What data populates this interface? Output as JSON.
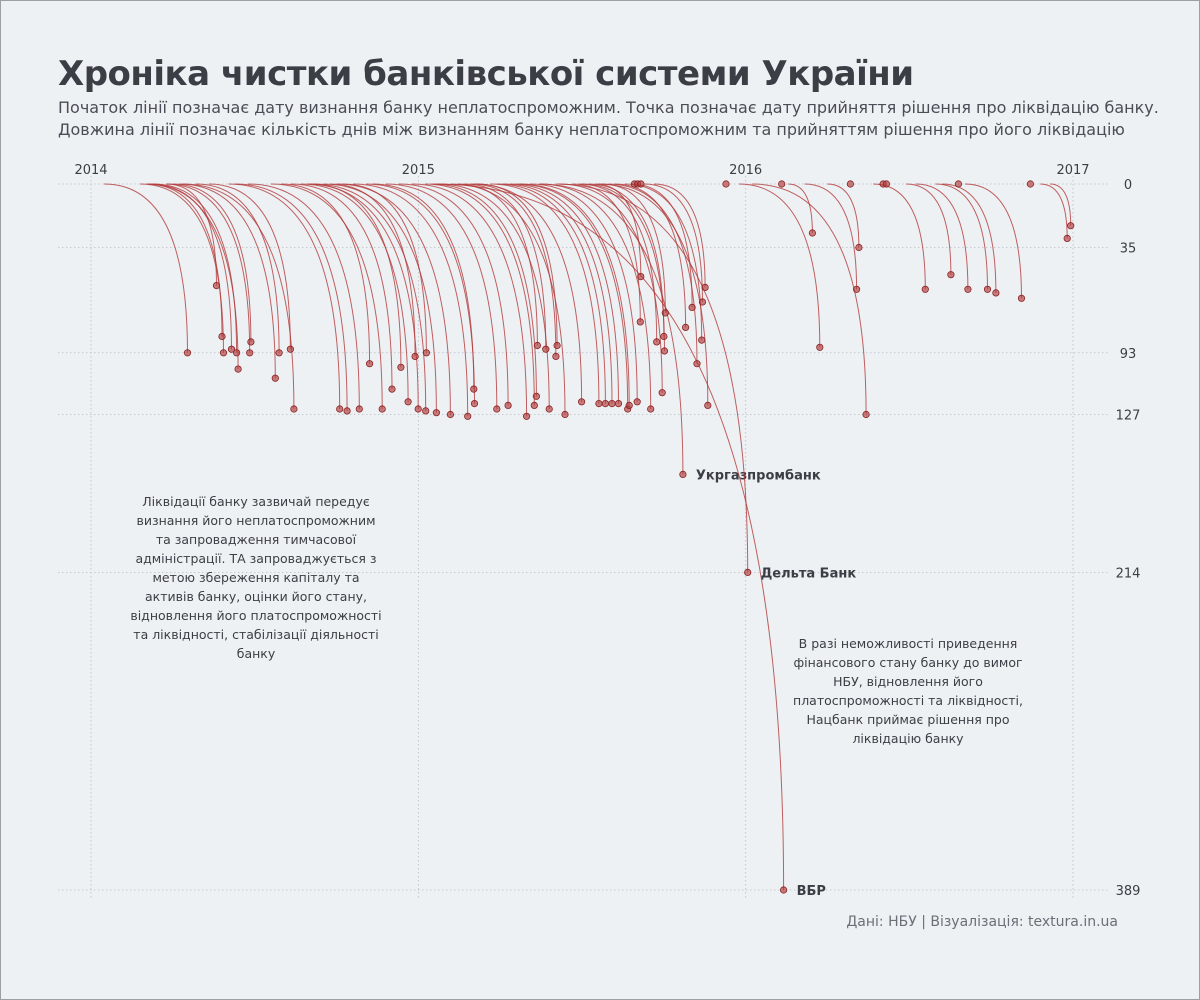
{
  "title": "Хроніка чистки банківської системи України",
  "subtitle": [
    "Початок лінії позначає дату визнання банку неплатоспроможним. Точка позначає дату прийняття рішення про ліквідацію банку.",
    "Довжина лінії позначає кількість днів між визнанням банку неплатоспроможним та прийняттям рішення про його ліквідацію"
  ],
  "notes": {
    "left": "Ліквідації банку зазвичай передує визнання його неплатоспроможним та запровадження тимчасової адміністрації. ТА запроваджується з метою збереження капіталу та активів банку, оцінки його стану, відновлення його платоспроможності та ліквідності, стабілізації діяльності банку",
    "right": "В разі неможливості приведення фінансового стану банку до вимог НБУ, відновлення його платоспроможності та ліквідності, Нацбанк приймає рішення про ліквідацію банку"
  },
  "source": "Дані: НБУ | Візуалізація: textura.in.ua",
  "colors": {
    "line": "#b23a3a",
    "point": "#b23a3a",
    "grid": "#b9bdc3",
    "text": "#3b3e45",
    "background": "#eef1f4"
  },
  "chart_data": {
    "type": "line",
    "x_axis": {
      "label": "",
      "unit": "year",
      "ticks": [
        "2014",
        "2015",
        "2016",
        "2017"
      ],
      "range": [
        2014.0,
        2017.0
      ],
      "position": "top"
    },
    "y_axis": {
      "label": "",
      "unit": "days",
      "ticks": [
        "0",
        "35",
        "93",
        "127",
        "214",
        "389"
      ],
      "range": [
        0,
        389
      ],
      "position": "right",
      "direction": "down"
    },
    "grid": true,
    "series": [
      {
        "comment": "",
        "points": [
          {
            "start": 2014.04,
            "days": 93,
            "label": ""
          },
          {
            "start": 2014.15,
            "days": 93,
            "label": ""
          },
          {
            "start": 2014.17,
            "days": 84,
            "label": ""
          },
          {
            "start": 2014.17,
            "days": 102,
            "label": ""
          },
          {
            "start": 2014.18,
            "days": 91,
            "label": ""
          },
          {
            "start": 2014.19,
            "days": 93,
            "label": ""
          },
          {
            "start": 2014.23,
            "days": 56,
            "label": ""
          },
          {
            "start": 2014.23,
            "days": 93,
            "label": ""
          },
          {
            "start": 2014.25,
            "days": 87,
            "label": ""
          },
          {
            "start": 2014.27,
            "days": 107,
            "label": ""
          },
          {
            "start": 2014.28,
            "days": 124,
            "label": ""
          },
          {
            "start": 2014.32,
            "days": 93,
            "label": ""
          },
          {
            "start": 2014.36,
            "days": 91,
            "label": ""
          },
          {
            "start": 2014.42,
            "days": 124,
            "label": ""
          },
          {
            "start": 2014.44,
            "days": 125,
            "label": ""
          },
          {
            "start": 2014.48,
            "days": 124,
            "label": ""
          },
          {
            "start": 2014.55,
            "days": 124,
            "label": ""
          },
          {
            "start": 2014.58,
            "days": 99,
            "label": ""
          },
          {
            "start": 2014.61,
            "days": 113,
            "label": ""
          },
          {
            "start": 2014.64,
            "days": 120,
            "label": ""
          },
          {
            "start": 2014.66,
            "days": 124,
            "label": ""
          },
          {
            "start": 2014.67,
            "days": 101,
            "label": ""
          },
          {
            "start": 2014.68,
            "days": 125,
            "label": ""
          },
          {
            "start": 2014.71,
            "days": 126,
            "label": ""
          },
          {
            "start": 2014.73,
            "days": 95,
            "label": ""
          },
          {
            "start": 2014.75,
            "days": 127,
            "label": ""
          },
          {
            "start": 2014.77,
            "days": 93,
            "label": ""
          },
          {
            "start": 2014.8,
            "days": 128,
            "label": ""
          },
          {
            "start": 2014.84,
            "days": 121,
            "label": ""
          },
          {
            "start": 2014.86,
            "days": 113,
            "label": ""
          },
          {
            "start": 2014.9,
            "days": 124,
            "label": ""
          },
          {
            "start": 2014.94,
            "days": 122,
            "label": ""
          },
          {
            "start": 2014.98,
            "days": 128,
            "label": ""
          },
          {
            "start": 2015.02,
            "days": 122,
            "label": ""
          },
          {
            "start": 2015.04,
            "days": 117,
            "label": ""
          },
          {
            "start": 2015.06,
            "days": 124,
            "label": ""
          },
          {
            "start": 2015.1,
            "days": 127,
            "label": ""
          },
          {
            "start": 2015.12,
            "days": 89,
            "label": ""
          },
          {
            "start": 2015.14,
            "days": 91,
            "label": ""
          },
          {
            "start": 2015.16,
            "days": 95,
            "label": ""
          },
          {
            "start": 2015.17,
            "days": 120,
            "label": ""
          },
          {
            "start": 2015.18,
            "days": 89,
            "label": ""
          },
          {
            "start": 2015.22,
            "days": 121,
            "label": ""
          },
          {
            "start": 2015.24,
            "days": 121,
            "label": ""
          },
          {
            "start": 2015.26,
            "days": 121,
            "label": ""
          },
          {
            "start": 2015.28,
            "days": 121,
            "label": ""
          },
          {
            "start": 2015.3,
            "days": 124,
            "label": ""
          },
          {
            "start": 2015.31,
            "days": 122,
            "label": ""
          },
          {
            "start": 2015.34,
            "days": 120,
            "label": ""
          },
          {
            "start": 2015.37,
            "days": 124,
            "label": ""
          },
          {
            "start": 2015.37,
            "days": 160,
            "label": "Укргазпромбанк"
          },
          {
            "start": 2015.42,
            "days": 214,
            "label": "Дельта Банк"
          },
          {
            "start": 2015.05,
            "days": 389,
            "label": "ВБР"
          },
          {
            "start": 2015.43,
            "days": 115,
            "label": ""
          },
          {
            "start": 2015.47,
            "days": 76,
            "label": ""
          },
          {
            "start": 2015.49,
            "days": 87,
            "label": ""
          },
          {
            "start": 2015.5,
            "days": 92,
            "label": ""
          },
          {
            "start": 2015.52,
            "days": 84,
            "label": ""
          },
          {
            "start": 2015.54,
            "days": 51,
            "label": ""
          },
          {
            "start": 2015.55,
            "days": 122,
            "label": ""
          },
          {
            "start": 2015.56,
            "days": 71,
            "label": ""
          },
          {
            "start": 2015.58,
            "days": 99,
            "label": ""
          },
          {
            "start": 2015.6,
            "days": 79,
            "label": ""
          },
          {
            "start": 2015.63,
            "days": 86,
            "label": ""
          },
          {
            "start": 2015.65,
            "days": 68,
            "label": ""
          },
          {
            "start": 2015.66,
            "days": 0,
            "label": ""
          },
          {
            "start": 2015.67,
            "days": 0,
            "label": ""
          },
          {
            "start": 2015.68,
            "days": 0,
            "label": ""
          },
          {
            "start": 2015.69,
            "days": 65,
            "label": ""
          },
          {
            "start": 2015.72,
            "days": 57,
            "label": ""
          },
          {
            "start": 2015.94,
            "days": 0,
            "label": ""
          },
          {
            "start": 2015.98,
            "days": 90,
            "label": ""
          },
          {
            "start": 2016.02,
            "days": 127,
            "label": ""
          },
          {
            "start": 2016.11,
            "days": 0,
            "label": ""
          },
          {
            "start": 2016.13,
            "days": 27,
            "label": ""
          },
          {
            "start": 2016.18,
            "days": 58,
            "label": ""
          },
          {
            "start": 2016.25,
            "days": 35,
            "label": ""
          },
          {
            "start": 2016.32,
            "days": 0,
            "label": ""
          },
          {
            "start": 2016.39,
            "days": 58,
            "label": ""
          },
          {
            "start": 2016.42,
            "days": 0,
            "label": ""
          },
          {
            "start": 2016.43,
            "days": 0,
            "label": ""
          },
          {
            "start": 2016.49,
            "days": 50,
            "label": ""
          },
          {
            "start": 2016.52,
            "days": 58,
            "label": ""
          },
          {
            "start": 2016.58,
            "days": 58,
            "label": ""
          },
          {
            "start": 2016.6,
            "days": 60,
            "label": ""
          },
          {
            "start": 2016.65,
            "days": 0,
            "label": ""
          },
          {
            "start": 2016.67,
            "days": 63,
            "label": ""
          },
          {
            "start": 2016.87,
            "days": 0,
            "label": ""
          },
          {
            "start": 2016.9,
            "days": 30,
            "label": ""
          },
          {
            "start": 2016.93,
            "days": 23,
            "label": ""
          }
        ]
      }
    ]
  }
}
